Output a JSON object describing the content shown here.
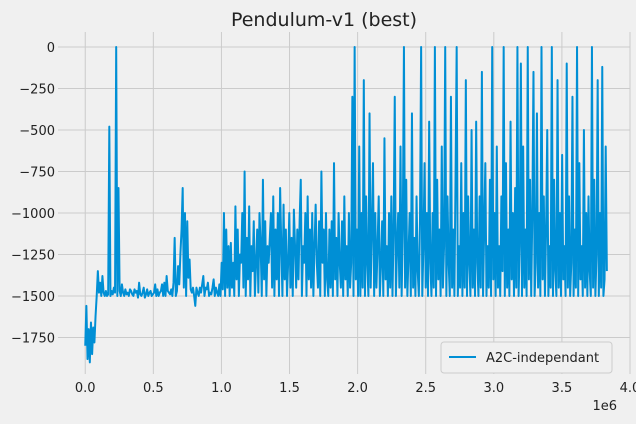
{
  "chart_data": {
    "type": "line",
    "title": "Pendulum-v1 (best)",
    "xlabel": "",
    "ylabel": "",
    "x_offset_label": "1e6",
    "xlim": [
      -0.2,
      4.0
    ],
    "ylim": [
      -1970,
      90
    ],
    "x_ticks": [
      0.0,
      0.5,
      1.0,
      1.5,
      2.0,
      2.5,
      3.0,
      3.5,
      4.0
    ],
    "x_tick_labels": [
      "0.0",
      "0.5",
      "1.0",
      "1.5",
      "2.0",
      "2.5",
      "3.0",
      "3.5",
      "4.0"
    ],
    "y_ticks": [
      0,
      -250,
      -500,
      -750,
      -1000,
      -1250,
      -1500,
      -1750
    ],
    "y_tick_labels": [
      "0",
      "−250",
      "−500",
      "−750",
      "−1000",
      "−1250",
      "−1500",
      "−1750"
    ],
    "grid": true,
    "legend_position": "bottom-right",
    "series": [
      {
        "name": "A2C-independant",
        "color": "#008fd5",
        "x_start": 0.0,
        "x_end": 3.83,
        "values": [
          -1800,
          -1560,
          -1880,
          -1700,
          -1900,
          -1660,
          -1850,
          -1690,
          -1780,
          -1620,
          -1500,
          -1350,
          -1480,
          -1420,
          -1500,
          -1380,
          -1480,
          -1500,
          -1470,
          -1500,
          -1490,
          -480,
          -1500,
          -1470,
          -1490,
          -1450,
          -1480,
          0,
          -1500,
          -850,
          -1470,
          -1500,
          -1430,
          -1480,
          -1500,
          -1460,
          -1490,
          -1480,
          -1500,
          -1460,
          -1470,
          -1490,
          -1500,
          -1460,
          -1480,
          -1470,
          -1510,
          -1420,
          -1490,
          -1500,
          -1480,
          -1450,
          -1510,
          -1490,
          -1460,
          -1500,
          -1480,
          -1470,
          -1500,
          -1490,
          -1480,
          -1430,
          -1500,
          -1460,
          -1500,
          -1480,
          -1470,
          -1430,
          -1500,
          -1420,
          -1500,
          -1380,
          -1470,
          -1480,
          -1490,
          -1460,
          -1500,
          -1420,
          -1150,
          -1500,
          -1470,
          -1320,
          -1430,
          -1250,
          -1100,
          -850,
          -1450,
          -1000,
          -1500,
          -1050,
          -1390,
          -1280,
          -1460,
          -1480,
          -1450,
          -1500,
          -1560,
          -1450,
          -1480,
          -1500,
          -1450,
          -1480,
          -1430,
          -1380,
          -1500,
          -1450,
          -1460,
          -1420,
          -1500,
          -1480,
          -1490,
          -1450,
          -1400,
          -1500,
          -1450,
          -1480,
          -1500,
          -1430,
          -1500,
          -1300,
          -1460,
          -1000,
          -1500,
          -1100,
          -1450,
          -1200,
          -1500,
          -1180,
          -1450,
          -1300,
          -1500,
          -960,
          -1400,
          -1100,
          -1500,
          -1250,
          -1300,
          -1000,
          -1450,
          -750,
          -1500,
          -1150,
          -1400,
          -960,
          -1500,
          -1200,
          -1350,
          -1050,
          -1500,
          -1300,
          -1100,
          -1480,
          -1000,
          -1200,
          -1500,
          -800,
          -1400,
          -1050,
          -1500,
          -1200,
          -1300,
          -1150,
          -1000,
          -1450,
          -900,
          -1500,
          -1100,
          -1400,
          -1000,
          -1500,
          -850,
          -1200,
          -1500,
          -950,
          -1400,
          -1100,
          -1500,
          -1300,
          -1000,
          -1450,
          -1150,
          -1500,
          -980,
          -1200,
          -1450,
          -1100,
          -1400,
          -1050,
          -800,
          -1500,
          -1200,
          -1300,
          -1000,
          -1500,
          -900,
          -1400,
          -1100,
          -1450,
          -1000,
          -1500,
          -1200,
          -950,
          -1300,
          -1450,
          -1050,
          -1500,
          -750,
          -1300,
          -1100,
          -1500,
          -1000,
          -1400,
          -1500,
          -1100,
          -1450,
          -1050,
          -1500,
          -700,
          -1400,
          -1150,
          -1500,
          -1000,
          -1300,
          -1450,
          -1050,
          -1500,
          -900,
          -1400,
          -1200,
          -1500,
          -1000,
          -1450,
          -1300,
          -300,
          -1500,
          0,
          -1400,
          -1100,
          -1500,
          -600,
          -1500,
          -1000,
          -1450,
          -200,
          -1500,
          -900,
          -1300,
          -1500,
          -400,
          -1450,
          -1100,
          -700,
          -1500,
          -1000,
          -1450,
          -1200,
          -900,
          -1500,
          -1300,
          -1050,
          -1500,
          -550,
          -1400,
          -1200,
          -1500,
          -1000,
          -1450,
          -900,
          -1500,
          -1100,
          -300,
          -1500,
          -1200,
          -1000,
          -1450,
          -600,
          -1500,
          -1100,
          0,
          -1450,
          -800,
          -1500,
          -1250,
          -1000,
          -1500,
          -400,
          -1450,
          -1150,
          -1500,
          -900,
          -1350,
          -1500,
          -1050,
          0,
          -1500,
          -1200,
          -700,
          -1450,
          -1000,
          -1500,
          -450,
          -1300,
          -1500,
          -1000,
          -1450,
          0,
          -1500,
          -800,
          -1400,
          -1100,
          -1500,
          -600,
          -1450,
          -1200,
          0,
          -1500,
          -900,
          -1300,
          -1500,
          -300,
          -1450,
          -1100,
          -1500,
          -800,
          0,
          -1500,
          -1200,
          -1450,
          -700,
          -1500,
          -1000,
          -1450,
          -200,
          -1500,
          -900,
          -1300,
          -1500,
          -500,
          -1450,
          -1100,
          -1500,
          -450,
          -1300,
          -1500,
          -900,
          -1450,
          -150,
          -1500,
          -1100,
          -700,
          -1500,
          -1200,
          -1450,
          -800,
          -1500,
          0,
          -1400,
          -1000,
          -1500,
          -600,
          -1450,
          -1200,
          -1500,
          -900,
          -1350,
          0,
          -1500,
          -700,
          -1450,
          -1100,
          -1500,
          -450,
          -1400,
          -1000,
          -1500,
          -850,
          -1450,
          0,
          -1500,
          -1200,
          -100,
          -1500,
          -600,
          -1450,
          -1100,
          -1500,
          0,
          -1400,
          -800,
          -1500,
          -1000,
          -150,
          -1500,
          -1300,
          -400,
          -1450,
          -1000,
          -1500,
          0,
          -1400,
          -900,
          -1500,
          -1100,
          -500,
          -1500,
          -1200,
          -1450,
          0,
          -1500,
          -800,
          -1350,
          -1500,
          -200,
          -1450,
          -1000,
          -1500,
          -650,
          -1400,
          -1200,
          -1500,
          -100,
          -1450,
          -900,
          -1500,
          -1300,
          -300,
          -1500,
          -1100,
          -1450,
          0,
          -1500,
          -700,
          -1400,
          -1200,
          -1500,
          -500,
          -1450,
          -1000,
          -1500,
          -900,
          -1350,
          -1500,
          0,
          -1450,
          -800,
          -1500,
          -1250,
          -200,
          -1500,
          -1000,
          -1450,
          -120,
          -1500,
          -1400,
          -600,
          -1350
        ]
      }
    ]
  }
}
